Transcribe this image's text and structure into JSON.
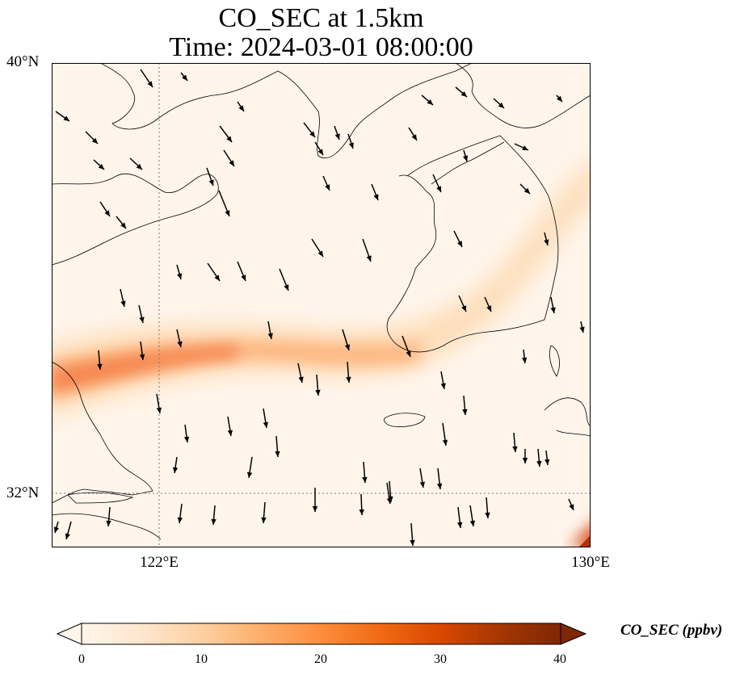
{
  "title": {
    "line1": "CO_SEC at 1.5km",
    "line2": "Time: 2024-03-01 08:00:00"
  },
  "map": {
    "lon_range": [
      120,
      130
    ],
    "lat_range": [
      31,
      40
    ],
    "lat_ticks": [
      {
        "value": 40,
        "label": "40°N"
      },
      {
        "value": 32,
        "label": "32°N"
      }
    ],
    "lon_ticks": [
      {
        "value": 122,
        "label": "122°E"
      },
      {
        "value": 130,
        "label": "130°E"
      }
    ],
    "gridlines": "dotted",
    "field_variable": "CO_SEC",
    "wind_vectors": "black arrows, generally southward (north-northwest winds)"
  },
  "colorbar": {
    "label": "CO_SEC (ppbv)",
    "min": 0,
    "max": 40,
    "ticks": [
      "0",
      "10",
      "20",
      "30",
      "40"
    ],
    "extend": "both",
    "colormap": [
      "#fff5eb",
      "#fee6ce",
      "#fdd0a2",
      "#fdae6b",
      "#fd8d3c",
      "#f16913",
      "#d94801",
      "#a63603",
      "#7f2704"
    ]
  },
  "colors": {
    "background": "#fff5eb",
    "plume": "#fc9a5e",
    "coast": "#000000",
    "grid": "#777777"
  }
}
